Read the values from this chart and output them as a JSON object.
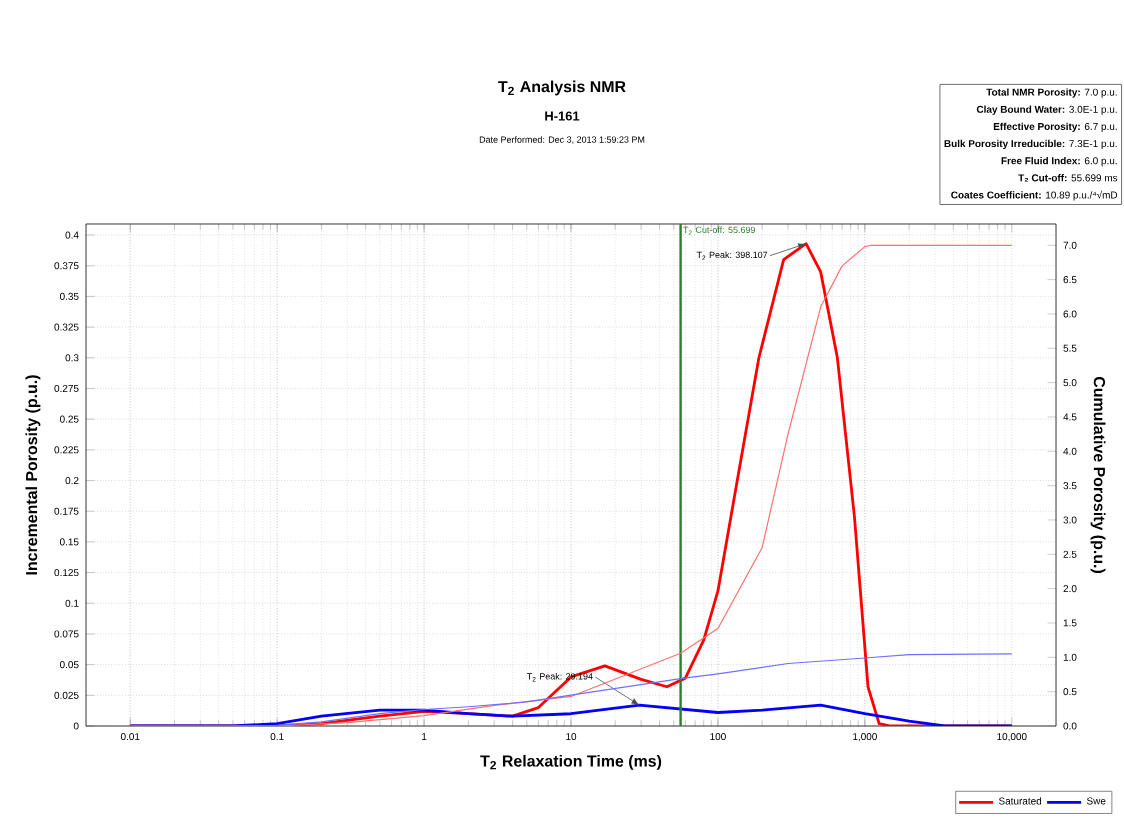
{
  "chart_data": {
    "type": "line",
    "title": "T$_{2}$ Analysis NMR",
    "subtitle": "H-161",
    "xlabel": "T$_{2}$ Relaxation Time (ms)",
    "ylabel": "Incremental Porosity (p.u.)",
    "y2label": "Cumulative Porosity (p.u.)",
    "log": "x",
    "xlim": [
      0.005,
      20000
    ],
    "xticks": [
      0.01,
      0.1,
      1,
      10,
      100,
      {
        "value": 1000,
        "label": "1,000"
      },
      {
        "value": 10000,
        "label": "10,000"
      }
    ],
    "ylim": [
      0,
      0.409
    ],
    "yticks": [
      0,
      0.025,
      0.05,
      0.075,
      0.1,
      0.125,
      0.15,
      0.175,
      0.2,
      0.225,
      0.25,
      0.275,
      0.3,
      0.325,
      0.35,
      0.375,
      0.4
    ],
    "y2lim": [
      0,
      7.31
    ],
    "y2ticks": [
      {
        "value": 0,
        "label": "0.0"
      },
      0.5,
      {
        "value": 1,
        "label": "1.0"
      },
      1.5,
      {
        "value": 2,
        "label": "2.0"
      },
      2.5,
      {
        "value": 3,
        "label": "3.0"
      },
      3.5,
      {
        "value": 4,
        "label": "4.0"
      },
      4.5,
      {
        "value": 5,
        "label": "5.0"
      },
      5.5,
      {
        "value": 6,
        "label": "6.0"
      },
      6.5,
      {
        "value": 7,
        "label": "7.0"
      }
    ],
    "grid": true,
    "legend": "bottom right",
    "marker": "none",
    "line_style": "solid",
    "series": [
      {
        "name": "Saturated",
        "color": "#ff0000",
        "x": [
          0.01,
          0.1,
          0.2,
          0.5,
          1,
          2,
          4,
          6,
          10,
          17,
          30,
          45,
          60,
          80,
          100,
          140,
          190,
          280,
          398.107,
          500,
          650,
          850,
          1050,
          1250,
          1500,
          10000
        ],
        "values": [
          0,
          0,
          0.002,
          0.008,
          0.012,
          0.01,
          0.008,
          0.015,
          0.04,
          0.049,
          0.038,
          0.032,
          0.039,
          0.07,
          0.11,
          0.21,
          0.3,
          0.38,
          0.393,
          0.37,
          0.3,
          0.17,
          0.032,
          0.002,
          0,
          0
        ]
      },
      {
        "name": "Swe",
        "color": "#0000ff",
        "x": [
          0.01,
          0.05,
          0.1,
          0.2,
          0.5,
          1,
          2,
          4,
          10,
          29.194,
          100,
          200,
          500,
          1000,
          2000,
          3500,
          10000
        ],
        "values": [
          0,
          0,
          0.002,
          0.008,
          0.013,
          0.013,
          0.01,
          0.008,
          0.01,
          0.017,
          0.011,
          0.013,
          0.017,
          0.01,
          0.004,
          0,
          0
        ]
      },
      {
        "color": "#ff7070",
        "axis": "y2",
        "x": [
          0.01,
          0.1,
          0.3,
          1,
          3,
          10,
          55.699,
          100,
          200,
          300,
          500,
          700,
          1000,
          1100,
          10000
        ],
        "values": [
          0,
          0,
          0.05,
          0.15,
          0.3,
          0.43,
          1.06,
          1.42,
          2.6,
          4.25,
          6.1,
          6.7,
          6.98,
          7.0,
          7.0
        ]
      },
      {
        "color": "#7070ff",
        "axis": "y2",
        "x": [
          0.01,
          0.05,
          0.1,
          0.2,
          0.5,
          1,
          2,
          5,
          10,
          55.699,
          100,
          300,
          1000,
          2000,
          10000
        ],
        "values": [
          0,
          0,
          0.01,
          0.06,
          0.18,
          0.24,
          0.28,
          0.35,
          0.45,
          0.69,
          0.76,
          0.91,
          0.99,
          1.04,
          1.05
        ]
      }
    ],
    "ref_lines": [
      {
        "axis": "x",
        "value": 55.699,
        "label": "T$_{2}$ Cut-off: 55.699",
        "color": "#2e7d32"
      }
    ],
    "annotations": [
      "Date Performed: Dec 3, 2013 1:59:23 PM",
      "**Total NMR Porosity:** 7.0 p.u.",
      "**Clay Bound Water:** 3.0E-1 p.u.",
      "**Effective Porosity:** 6.7 p.u.",
      "**Bulk Porosity Irreducible:** 7.3E-1 p.u.",
      "**Free Fluid Index:** 6.0 p.u.",
      "**T₂ Cut-off:** 55.699 ms",
      "**Coates Coefficient:** 10.89 p.u./⁴√mD",
      {
        "text": "T$_{2}$ Peak: 398.107",
        "x": 398.107,
        "y": 0.393
      },
      {
        "text": "T$_{2}$ Peak: 29.194",
        "x": 29.194,
        "y": 0.017
      }
    ]
  }
}
